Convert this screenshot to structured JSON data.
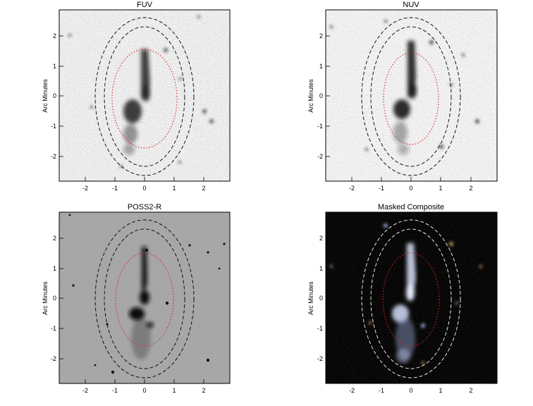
{
  "figure": {
    "panels": [
      {
        "id": "fuv",
        "title": "FUV",
        "ylabel": "Arc Minutes",
        "xticks": [
          "-2",
          "-1",
          "0",
          "1",
          "2"
        ],
        "yticks": [
          "2",
          "1",
          "0",
          "-1",
          "-2"
        ],
        "image_style": "inverted-grayscale noisy"
      },
      {
        "id": "nuv",
        "title": "NUV",
        "ylabel": "Arc Minutes",
        "xticks": [
          "-2",
          "-1",
          "0",
          "1",
          "2"
        ],
        "yticks": [
          "2",
          "1",
          "0",
          "-1",
          "-2"
        ],
        "image_style": "inverted-grayscale noisy"
      },
      {
        "id": "poss2r",
        "title": "POSS2-R",
        "ylabel": "Arc Minutes",
        "xticks": [
          "-2",
          "-1",
          "0",
          "1",
          "2"
        ],
        "yticks": [
          "2",
          "1",
          "0",
          "-1",
          "-2"
        ],
        "image_style": "gray photographic plate"
      },
      {
        "id": "composite",
        "title": "Masked Composite",
        "ylabel": "Arc Minutes",
        "xticks": [
          "-2",
          "-1",
          "0",
          "1",
          "2"
        ],
        "yticks": [
          "2",
          "1",
          "0",
          "-1",
          "-2"
        ],
        "image_style": "color composite on black"
      }
    ],
    "colors": {
      "inner_ellipse": "#e02020",
      "outer_ellipse_dark": "#000000",
      "outer_ellipse_light": "#ffffff",
      "galaxy_dark": "#1a1a1a",
      "composite_galaxy": "#c8d4ee"
    }
  }
}
